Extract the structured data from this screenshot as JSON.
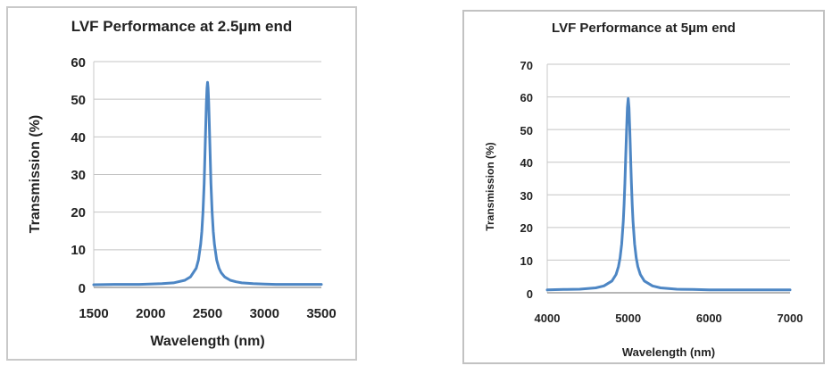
{
  "colors": {
    "line": "#4d86c4",
    "grid": "#c4c4c4",
    "axis": "#9e9e9e",
    "plot_frame": "#c9c9c9",
    "text": "#222222",
    "panel_border_left": "#c9c9c9",
    "panel_border_right": "#c2c2c2"
  },
  "chart_data": [
    {
      "type": "line",
      "title": "LVF Performance at 2.5µm end",
      "xlabel": "Wavelength (nm)",
      "ylabel": "Transmission (%)",
      "xlim": [
        1500,
        3500
      ],
      "ylim": [
        0,
        60
      ],
      "xticks": [
        1500,
        2000,
        2500,
        3000,
        3500
      ],
      "yticks": [
        0,
        10,
        20,
        30,
        40,
        50,
        60
      ],
      "grid": "horizontal",
      "legend": "none",
      "line_color": "#4d86c4",
      "peak": {
        "x_nm": 2500,
        "max_transmission_pct": 54.5,
        "baseline_pct": 0.8
      },
      "series": [
        {
          "name": "Transmission",
          "x": [
            1500,
            1700,
            1900,
            2100,
            2200,
            2300,
            2350,
            2400,
            2420,
            2440,
            2450,
            2460,
            2470,
            2480,
            2490,
            2495,
            2500,
            2505,
            2510,
            2520,
            2530,
            2540,
            2550,
            2560,
            2580,
            2600,
            2620,
            2650,
            2700,
            2750,
            2800,
            2900,
            3000,
            3100,
            3200,
            3300,
            3400,
            3500
          ],
          "y": [
            0.7,
            0.8,
            0.8,
            1.0,
            1.2,
            1.9,
            2.8,
            5.1,
            7.3,
            11.5,
            14.9,
            20.1,
            27.6,
            38.0,
            49.1,
            53.0,
            54.5,
            53.0,
            49.1,
            38.0,
            27.6,
            20.1,
            14.9,
            11.5,
            7.3,
            5.1,
            3.9,
            2.8,
            1.9,
            1.5,
            1.2,
            1.0,
            0.9,
            0.8,
            0.8,
            0.8,
            0.8,
            0.8
          ]
        }
      ]
    },
    {
      "type": "line",
      "title": "LVF Performance at 5µm end",
      "xlabel": "Wavelength (nm)",
      "ylabel": "Transmission (%)",
      "xlim": [
        4000,
        7000
      ],
      "ylim": [
        0,
        70
      ],
      "xticks": [
        4000,
        5000,
        6000,
        7000
      ],
      "yticks": [
        0,
        10,
        20,
        30,
        40,
        50,
        60,
        70
      ],
      "grid": "horizontal",
      "legend": "none",
      "line_color": "#4d86c4",
      "peak": {
        "x_nm": 5000,
        "max_transmission_pct": 59.5,
        "baseline_pct": 0.9
      },
      "series": [
        {
          "name": "Transmission",
          "x": [
            4000,
            4200,
            4400,
            4600,
            4700,
            4800,
            4850,
            4880,
            4900,
            4920,
            4940,
            4950,
            4960,
            4970,
            4980,
            4990,
            5000,
            5010,
            5020,
            5030,
            5040,
            5050,
            5060,
            5080,
            5100,
            5120,
            5150,
            5200,
            5300,
            5400,
            5600,
            5800,
            6000,
            6200,
            6400,
            6600,
            6800,
            7000
          ],
          "y": [
            0.9,
            1.0,
            1.1,
            1.5,
            2.1,
            3.6,
            5.6,
            8.0,
            10.7,
            14.9,
            21.9,
            27.1,
            33.6,
            41.5,
            49.8,
            56.7,
            59.5,
            56.7,
            49.8,
            41.5,
            33.6,
            27.1,
            21.9,
            14.9,
            10.7,
            8.0,
            5.6,
            3.6,
            2.1,
            1.5,
            1.1,
            1.0,
            0.9,
            0.9,
            0.9,
            0.9,
            0.9,
            0.9
          ]
        }
      ]
    }
  ]
}
